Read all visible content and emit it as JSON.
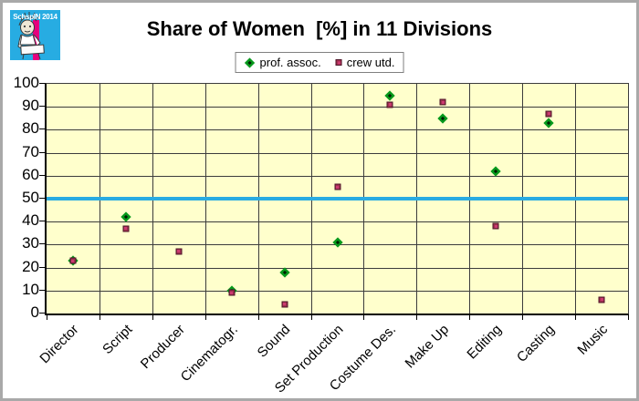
{
  "logo": {
    "text": "SchspIN 2014"
  },
  "title": "Share of Women  [%] in 11 Divisions",
  "legend": [
    {
      "label": "prof. assoc.",
      "marker": "diamond"
    },
    {
      "label": "crew utd.",
      "marker": "square"
    }
  ],
  "colors": {
    "plot_bg": "#FFFFCC",
    "grid": "#3C3C3C",
    "axis": "#000000",
    "reference_line": "#29ABE2",
    "diamond_fill": "#07991C",
    "diamond_core": "#001E00",
    "square_fill": "#A03050",
    "square_border": "#4D1428",
    "square_core": "#CC3A70",
    "logo_bg": "#27ACE2",
    "logo_stripe": "#E6007E"
  },
  "chart_data": {
    "type": "scatter",
    "title": "Share of Women  [%] in 11 Divisions",
    "categories": [
      "Director",
      "Script",
      "Producer",
      "Cinematogr.",
      "Sound",
      "Set Production",
      "Costume Des.",
      "Make Up",
      "Editing",
      "Casting",
      "Music"
    ],
    "series": [
      {
        "name": "prof. assoc.",
        "marker": "diamond",
        "values": [
          23,
          42,
          null,
          10,
          18,
          31,
          95,
          85,
          62,
          83,
          null
        ]
      },
      {
        "name": "crew utd.",
        "marker": "square",
        "values": [
          23,
          37,
          27,
          9,
          4,
          55,
          91,
          92,
          38,
          87,
          6
        ]
      }
    ],
    "ylim": [
      0,
      100
    ],
    "yticks": [
      0,
      10,
      20,
      30,
      40,
      50,
      60,
      70,
      80,
      90,
      100
    ],
    "reference_line_y": 50,
    "grid": true,
    "legend_position": "top",
    "xlabel": "",
    "ylabel": ""
  }
}
